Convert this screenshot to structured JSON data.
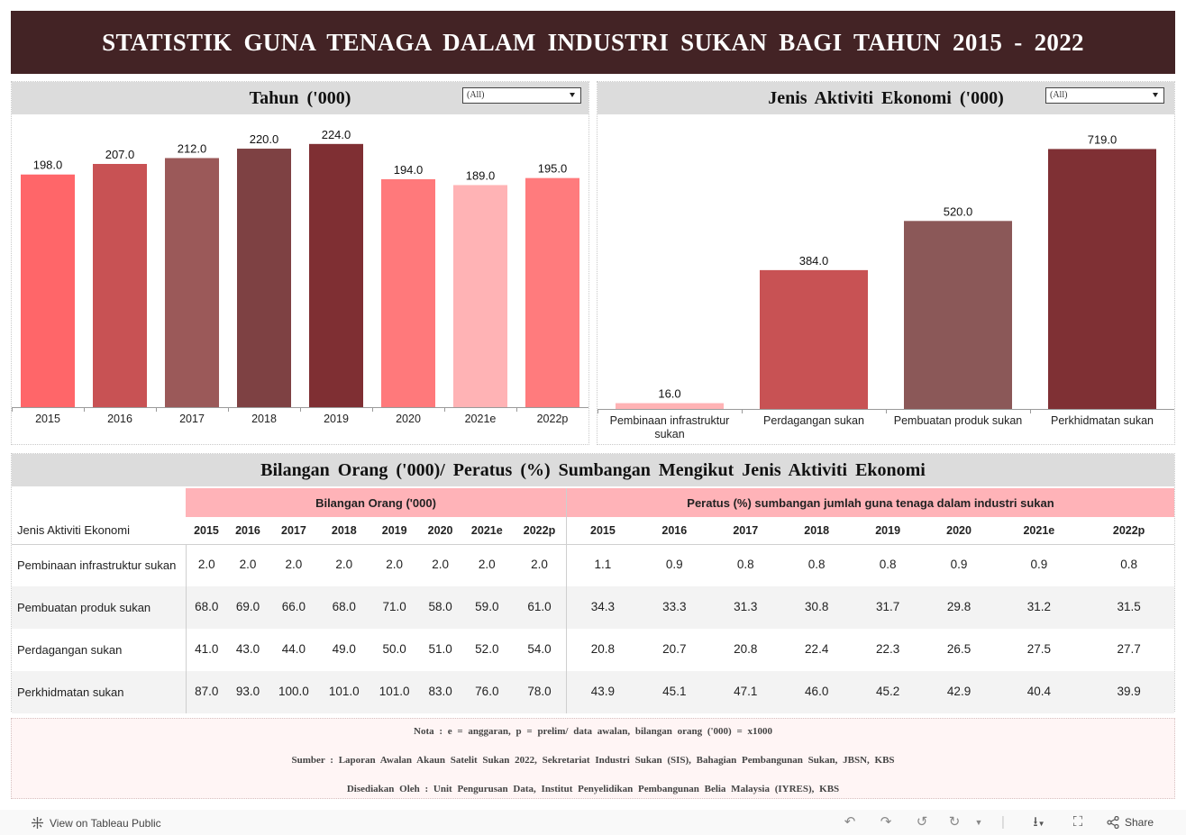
{
  "title": "STATISTIK GUNA TENAGA DALAM INDUSTRI SUKAN BAGI TAHUN 2015 - 2022",
  "panel_year": {
    "title": "Tahun ('000)",
    "filter_value": "(All)"
  },
  "panel_activity": {
    "title": "Jenis Aktiviti Ekonomi ('000)",
    "filter_value": "(All)"
  },
  "chart_data": [
    {
      "type": "bar",
      "title": "Tahun ('000)",
      "categories": [
        "2015",
        "2016",
        "2017",
        "2018",
        "2019",
        "2020",
        "2021e",
        "2022p"
      ],
      "values": [
        198.0,
        207.0,
        212.0,
        220.0,
        224.0,
        194.0,
        189.0,
        195.0
      ],
      "data_labels": [
        "198.0",
        "207.0",
        "212.0",
        "220.0",
        "224.0",
        "194.0",
        "189.0",
        "195.0"
      ],
      "colors": [
        "#ff6669",
        "#c85254",
        "#9b5959",
        "#7e4143",
        "#7f2f33",
        "#ff797b",
        "#ffb3b5",
        "#ff7b7d"
      ],
      "ylim": [
        0,
        230
      ]
    },
    {
      "type": "bar",
      "title": "Jenis Aktiviti Ekonomi ('000)",
      "categories": [
        "Pembinaan infrastruktur sukan",
        "Perdagangan sukan",
        "Pembuatan produk sukan",
        "Perkhidmatan sukan"
      ],
      "values": [
        16.0,
        384.0,
        520.0,
        719.0
      ],
      "data_labels": [
        "16.0",
        "384.0",
        "520.0",
        "719.0"
      ],
      "colors": [
        "#ffb3b5",
        "#c85254",
        "#8b5858",
        "#7f3034"
      ],
      "ylim": [
        0,
        740
      ]
    },
    {
      "type": "table",
      "title": "Bilangan Orang ('000)/ Peratus (%) Sumbangan Mengikut Jenis Aktiviti Ekonomi",
      "row_header": "Jenis Aktiviti Ekonomi",
      "group1": "Bilangan Orang ('000)",
      "group2": "Peratus (%) sumbangan jumlah guna tenaga dalam industri sukan",
      "years": [
        "2015",
        "2016",
        "2017",
        "2018",
        "2019",
        "2020",
        "2021e",
        "2022p"
      ],
      "rows": [
        {
          "label": "Pembinaan infrastruktur sukan",
          "count": [
            "2.0",
            "2.0",
            "2.0",
            "2.0",
            "2.0",
            "2.0",
            "2.0",
            "2.0"
          ],
          "pct": [
            "1.1",
            "0.9",
            "0.8",
            "0.8",
            "0.8",
            "0.9",
            "0.9",
            "0.8"
          ]
        },
        {
          "label": "Pembuatan produk sukan",
          "count": [
            "68.0",
            "69.0",
            "66.0",
            "68.0",
            "71.0",
            "58.0",
            "59.0",
            "61.0"
          ],
          "pct": [
            "34.3",
            "33.3",
            "31.3",
            "30.8",
            "31.7",
            "29.8",
            "31.2",
            "31.5"
          ]
        },
        {
          "label": "Perdagangan sukan",
          "count": [
            "41.0",
            "43.0",
            "44.0",
            "49.0",
            "50.0",
            "51.0",
            "52.0",
            "54.0"
          ],
          "pct": [
            "20.8",
            "20.7",
            "20.8",
            "22.4",
            "22.3",
            "26.5",
            "27.5",
            "27.7"
          ]
        },
        {
          "label": "Perkhidmatan sukan",
          "count": [
            "87.0",
            "93.0",
            "100.0",
            "101.0",
            "101.0",
            "83.0",
            "76.0",
            "78.0"
          ],
          "pct": [
            "43.9",
            "45.1",
            "47.1",
            "46.0",
            "45.2",
            "42.9",
            "40.4",
            "39.9"
          ]
        }
      ]
    }
  ],
  "notes": {
    "nota": "Nota : e = anggaran, p = prelim/ data awalan, bilangan orang ('000) = x1000",
    "sumber": "Sumber : Laporan Awalan Akaun Satelit Sukan 2022, Sekretariat Industri Sukan (SIS), Bahagian Pembangunan Sukan, JBSN, KBS",
    "disediakan": "Disediakan Oleh : Unit Pengurusan Data, Institut Penyelidikan Pembangunan Belia Malaysia (IYRES), KBS"
  },
  "footer": {
    "view_label": "View on Tableau Public",
    "share_label": "Share",
    "icons": [
      "tableau-icon",
      "undo-icon",
      "redo-icon",
      "revert-icon",
      "refresh-icon",
      "download-icon",
      "fullscreen-icon",
      "share-icon"
    ]
  }
}
